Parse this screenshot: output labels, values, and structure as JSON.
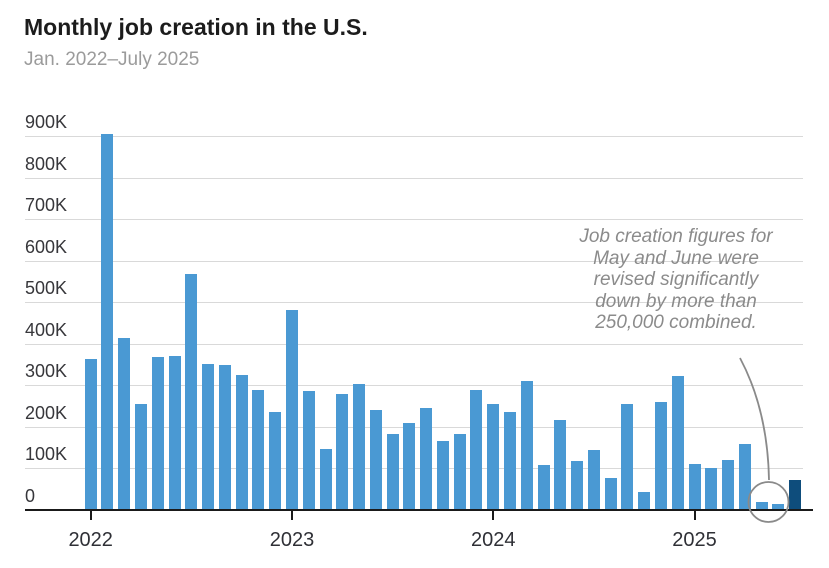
{
  "header": {
    "title": "Monthly job creation in the U.S.",
    "subtitle": "Jan. 2022–July 2025"
  },
  "annotation": {
    "lines": [
      "Job creation figures for",
      "May and June were",
      "revised significantly",
      "down by more than",
      "250,000 combined."
    ]
  },
  "colors": {
    "bar": "#4a99d3",
    "bar_highlight": "#0e4d7c",
    "gridline": "#d9d9d9",
    "axis": "#1a1a1a",
    "annotation_gray": "#8b8b8b"
  },
  "chart_data": {
    "type": "bar",
    "title": "Monthly job creation in the U.S.",
    "subtitle": "Jan. 2022–July 2025",
    "unit": "jobs added per month (thousands)",
    "grid": true,
    "legend": false,
    "ylim": [
      0,
      900
    ],
    "x": [
      "Jan 2022",
      "Feb 2022",
      "Mar 2022",
      "Apr 2022",
      "May 2022",
      "Jun 2022",
      "Jul 2022",
      "Aug 2022",
      "Sep 2022",
      "Oct 2022",
      "Nov 2022",
      "Dec 2022",
      "Jan 2023",
      "Feb 2023",
      "Mar 2023",
      "Apr 2023",
      "May 2023",
      "Jun 2023",
      "Jul 2023",
      "Aug 2023",
      "Sep 2023",
      "Oct 2023",
      "Nov 2023",
      "Dec 2023",
      "Jan 2024",
      "Feb 2024",
      "Mar 2024",
      "Apr 2024",
      "May 2024",
      "Jun 2024",
      "Jul 2024",
      "Aug 2024",
      "Sep 2024",
      "Oct 2024",
      "Nov 2024",
      "Dec 2024",
      "Jan 2025",
      "Feb 2025",
      "Mar 2025",
      "Apr 2025",
      "May 2025",
      "Jun 2025",
      "Jul 2025"
    ],
    "values": [
      364,
      904,
      414,
      254,
      368,
      370,
      568,
      352,
      350,
      324,
      290,
      235,
      482,
      287,
      146,
      278,
      303,
      240,
      184,
      210,
      246,
      165,
      182,
      290,
      256,
      236,
      310,
      108,
      216,
      118,
      144,
      78,
      255,
      44,
      261,
      323,
      111,
      102,
      120,
      158,
      19,
      14,
      73
    ],
    "yticks": [
      {
        "v": 0,
        "label": "0"
      },
      {
        "v": 100,
        "label": "100K"
      },
      {
        "v": 200,
        "label": "200K"
      },
      {
        "v": 300,
        "label": "300K"
      },
      {
        "v": 400,
        "label": "400K"
      },
      {
        "v": 500,
        "label": "500K"
      },
      {
        "v": 600,
        "label": "600K"
      },
      {
        "v": 700,
        "label": "700K"
      },
      {
        "v": 800,
        "label": "800K"
      },
      {
        "v": 900,
        "label": "900K"
      }
    ],
    "xticks": [
      {
        "index": 0,
        "label": "2022"
      },
      {
        "index": 12,
        "label": "2023"
      },
      {
        "index": 24,
        "label": "2024"
      },
      {
        "index": 36,
        "label": "2025"
      }
    ],
    "highlight_index": 42,
    "circled_indices": [
      40,
      41
    ]
  }
}
